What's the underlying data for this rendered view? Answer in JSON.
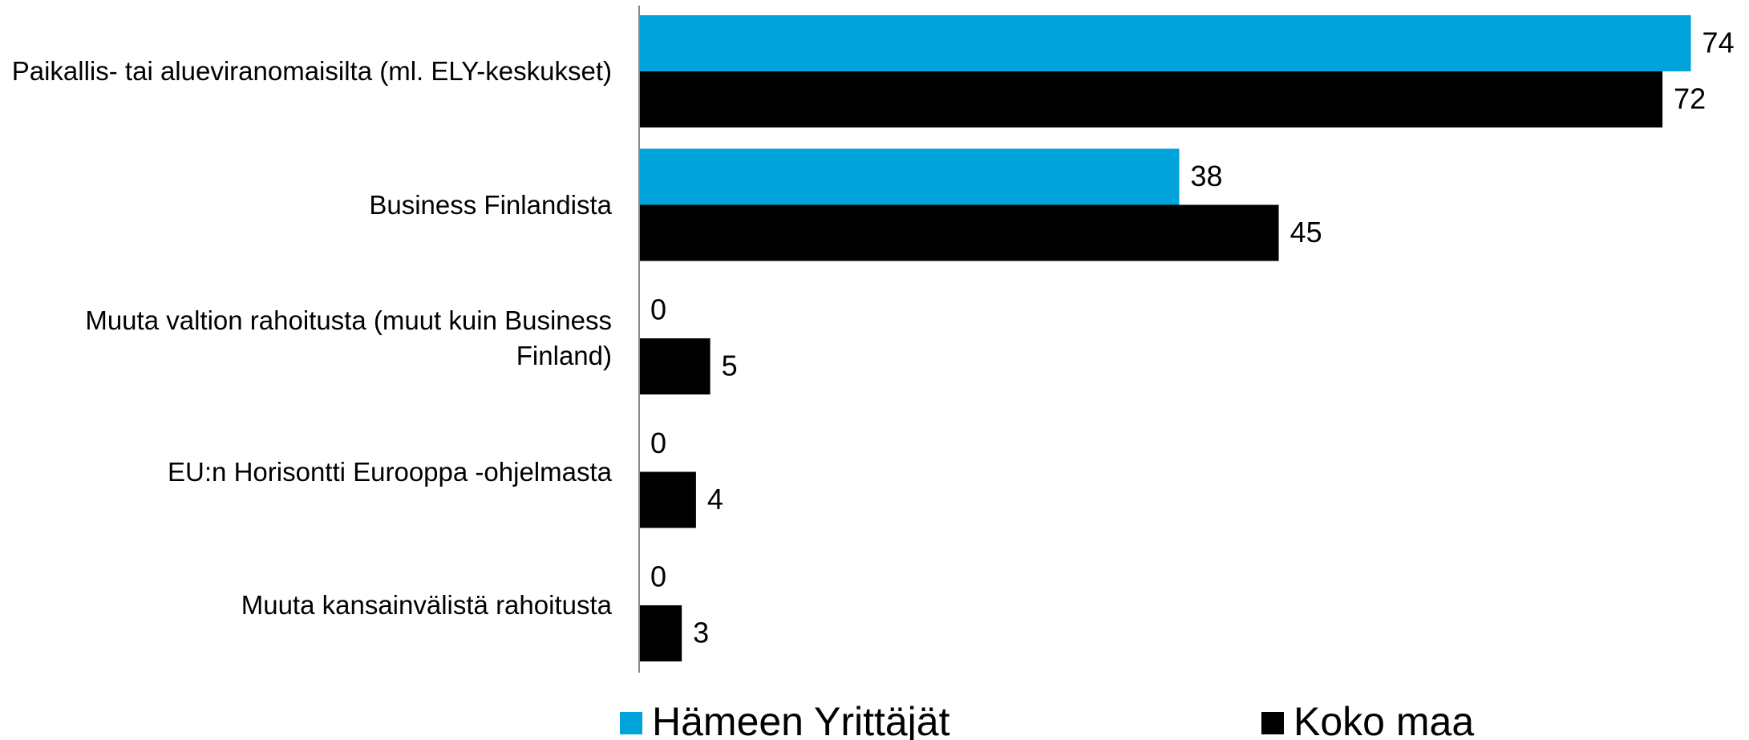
{
  "chart_data": {
    "type": "hbar",
    "categories": [
      "Paikallis- tai alueviranomaisilta (ml. ELY-keskukset)",
      "Business Finlandista",
      "Muuta valtion rahoitusta (muut kuin Business Finland)",
      "EU:n Horisontti Eurooppa -ohjelmasta",
      "Muuta kansainvälistä rahoitusta"
    ],
    "series": [
      {
        "name": "Hämeen Yrittäjät",
        "color": "#00a3da",
        "values": [
          74,
          38,
          0,
          0,
          0
        ]
      },
      {
        "name": "Koko maa",
        "color": "#000000",
        "values": [
          72,
          45,
          5,
          4,
          3
        ]
      }
    ],
    "xlim": [
      0,
      76
    ],
    "legend": "bottom"
  }
}
